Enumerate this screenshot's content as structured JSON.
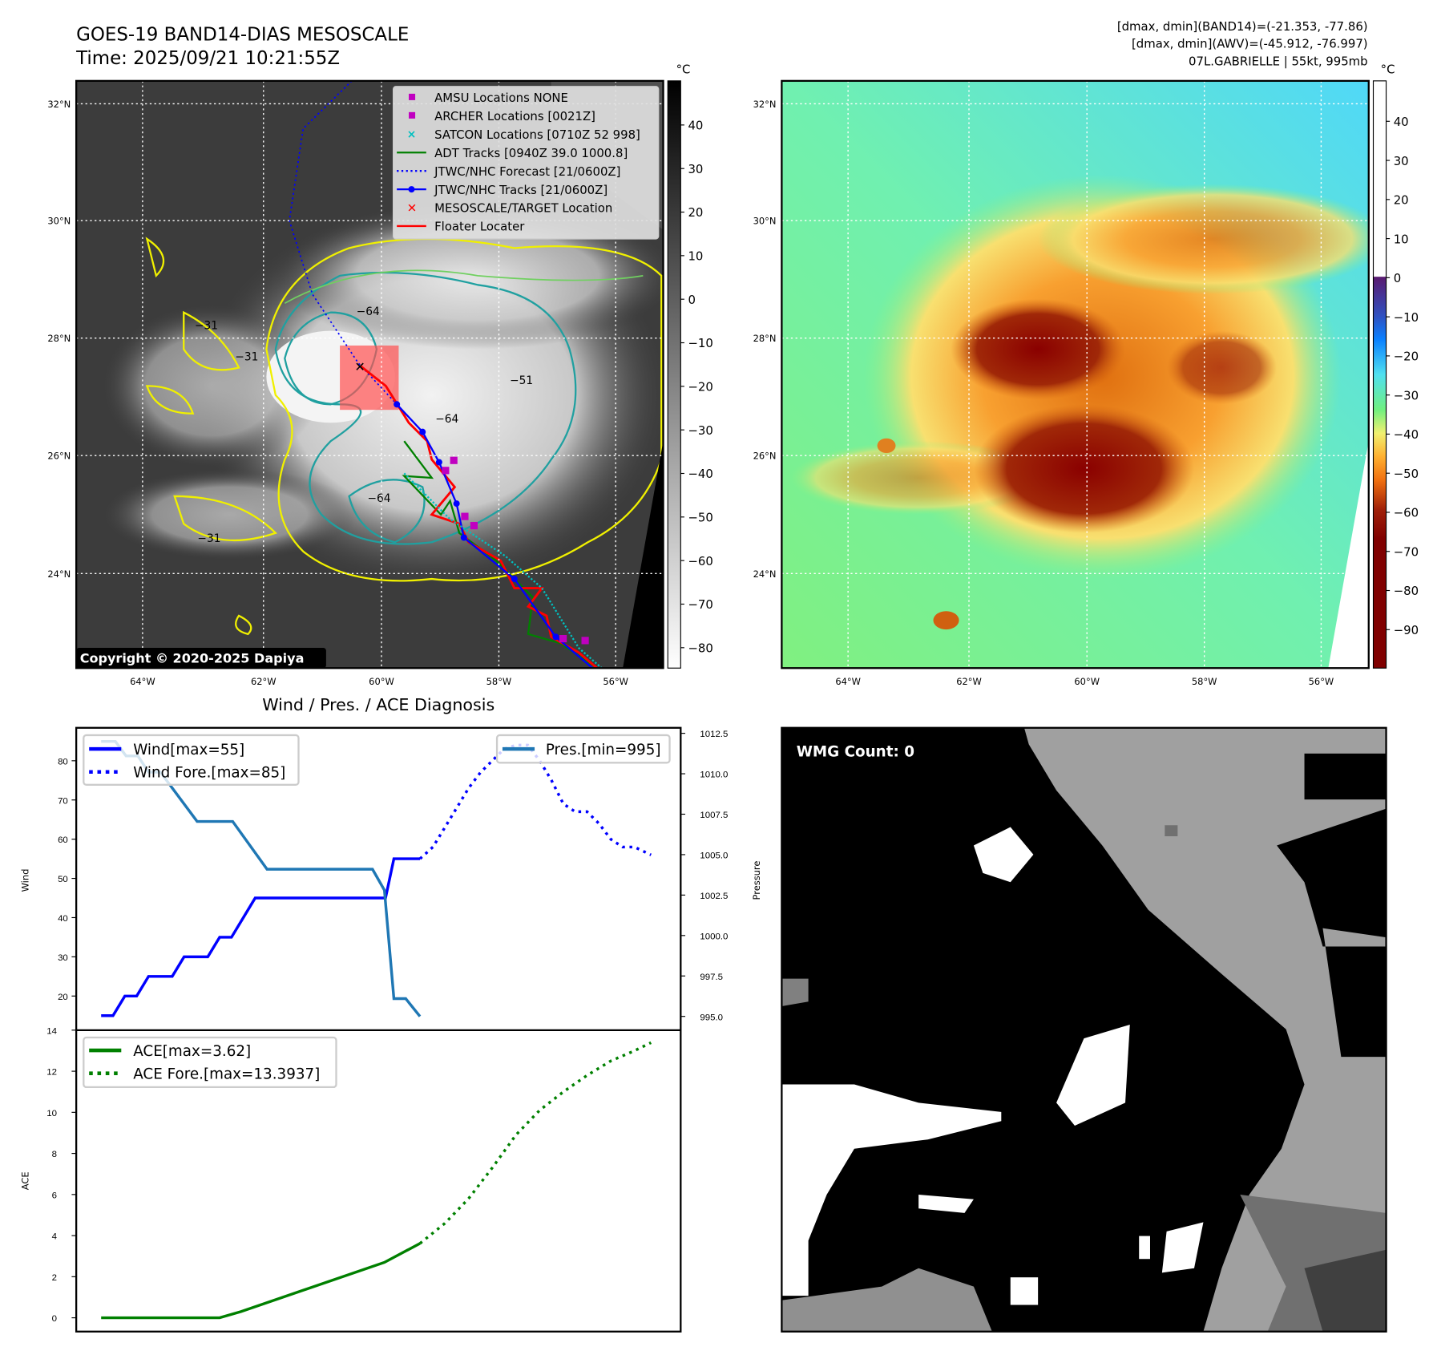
{
  "header": {
    "title": "GOES-19 BAND14-DIAS MESOSCALE",
    "time": "Time: 2025/09/21 10:21:55Z",
    "info_lines": [
      "[dmax, dmin](BAND14)=(-21.353, -77.86)",
      "[dmax, dmin](AWV)=(-45.912, -76.997)",
      "07L.GABRIELLE | 55kt, 995mb"
    ]
  },
  "maps": {
    "lat_labels": [
      "32°N",
      "30°N",
      "28°N",
      "26°N",
      "24°N"
    ],
    "lon_labels": [
      "64°W",
      "62°W",
      "60°W",
      "58°W",
      "56°W"
    ],
    "copyright": "Copyright © 2020-2025 Dapiya",
    "contour_labels": [
      "−31",
      "−64",
      "−51",
      "−64",
      "−64",
      "−31",
      "−31"
    ],
    "legend": [
      {
        "label": "AMSU Locations NONE",
        "color": "#c000c0"
      },
      {
        "label": "ARCHER Locations [0021Z]",
        "color": "#c000c0"
      },
      {
        "label": "SATCON Locations [0710Z 52 998]",
        "color": "#00c0c0"
      },
      {
        "label": "ADT Tracks [0940Z 39.0 1000.8]",
        "color": "#008000"
      },
      {
        "label": "JTWC/NHC Forecast [21/0600Z]",
        "color": "#0000ff"
      },
      {
        "label": "JTWC/NHC Tracks [21/0600Z]",
        "color": "#0000ff"
      },
      {
        "label": "MESOSCALE/TARGET Location",
        "color": "#ff0000"
      },
      {
        "label": "Floater Locater",
        "color": "#ff0000"
      }
    ],
    "colorbar_unit": "°C",
    "colorbar_left_ticks": [
      "40",
      "30",
      "20",
      "10",
      "0",
      "−10",
      "−20",
      "−30",
      "−40",
      "−50",
      "−60",
      "−70",
      "−80"
    ],
    "colorbar_right_ticks": [
      "40",
      "30",
      "20",
      "10",
      "0",
      "−10",
      "−20",
      "−30",
      "−40",
      "−50",
      "−60",
      "−70",
      "−80",
      "−90"
    ]
  },
  "wmg": {
    "label": "WMG Count: 0"
  },
  "chart_data": [
    {
      "type": "line",
      "title": "Wind / Pres. / ACE Diagnosis",
      "ylabel": "Wind",
      "y2label": "Pressure",
      "ylim": [
        11.3,
        88.4
      ],
      "y2lim": [
        994.15,
        1012.84
      ],
      "xlim": [
        -2.1,
        48.9
      ],
      "yticks": [
        20,
        30,
        40,
        50,
        60,
        70,
        80
      ],
      "y2ticks": [
        "995.0",
        "997.5",
        "1000.0",
        "1002.5",
        "1005.0",
        "1007.5",
        "1010.0",
        "1012.5"
      ],
      "legend_left": [
        "Wind[max=55]",
        "Wind Fore.[max=85]"
      ],
      "legend_right": [
        "Pres.[min=995]"
      ],
      "series": [
        {
          "name": "Wind[max=55]",
          "color": "#0000ff",
          "style": "solid",
          "points": [
            [
              0,
              15
            ],
            [
              1,
              15
            ],
            [
              2,
              20
            ],
            [
              3,
              20
            ],
            [
              4,
              25
            ],
            [
              6,
              25
            ],
            [
              7,
              30
            ],
            [
              9,
              30
            ],
            [
              10,
              35
            ],
            [
              11,
              35
            ],
            [
              13,
              45
            ],
            [
              24,
              45
            ],
            [
              24.7,
              55
            ],
            [
              26.9,
              55
            ]
          ]
        },
        {
          "name": "Wind Fore.[max=85]",
          "color": "#0000ff",
          "style": "dotted",
          "points": [
            [
              26.9,
              55
            ],
            [
              28,
              58
            ],
            [
              29,
              63
            ],
            [
              30,
              68
            ],
            [
              31,
              73
            ],
            [
              32,
              77
            ],
            [
              33,
              80
            ],
            [
              34,
              83
            ],
            [
              35,
              84
            ],
            [
              36,
              84
            ],
            [
              37,
              80
            ],
            [
              38,
              75
            ],
            [
              39,
              69
            ],
            [
              40,
              67
            ],
            [
              41,
              67
            ],
            [
              42,
              64
            ],
            [
              43,
              60
            ],
            [
              44,
              58
            ],
            [
              45,
              58
            ],
            [
              46.4,
              56
            ]
          ]
        },
        {
          "name": "Pres.[min=995]",
          "color": "#1f77b4",
          "style": "solid",
          "axis": "right",
          "points": [
            [
              0,
              1012.0
            ],
            [
              1.2,
              1012.0
            ],
            [
              2.1,
              1011.1
            ],
            [
              3.1,
              1011.1
            ],
            [
              4,
              1010.1
            ],
            [
              5,
              1010.1
            ],
            [
              8.1,
              1007.05
            ],
            [
              11.1,
              1007.05
            ],
            [
              14,
              1004.1
            ],
            [
              22.9,
              1004.1
            ],
            [
              23.9,
              1002.8
            ],
            [
              24.7,
              996.1
            ],
            [
              25.7,
              996.1
            ],
            [
              26.9,
              995.0
            ]
          ]
        }
      ]
    },
    {
      "type": "line",
      "ylabel": "ACE",
      "ylim": [
        -0.67,
        14
      ],
      "xlim": [
        -2.1,
        48.9
      ],
      "yticks": [
        0,
        2,
        4,
        6,
        8,
        10,
        12,
        14
      ],
      "legend": [
        "ACE[max=3.62]",
        "ACE Fore.[max=13.3937]"
      ],
      "series": [
        {
          "name": "ACE[max=3.62]",
          "color": "#008000",
          "style": "solid",
          "points": [
            [
              0,
              0
            ],
            [
              10,
              0
            ],
            [
              11.8,
              0.3
            ],
            [
              23.9,
              2.7
            ],
            [
              26.9,
              3.62
            ]
          ]
        },
        {
          "name": "ACE Fore.[max=13.3937]",
          "color": "#008000",
          "style": "dotted",
          "points": [
            [
              26.9,
              3.62
            ],
            [
              29,
              4.6
            ],
            [
              31,
              5.8
            ],
            [
              33,
              7.3
            ],
            [
              35,
              8.9
            ],
            [
              37,
              10.1
            ],
            [
              39,
              11.0
            ],
            [
              41,
              11.8
            ],
            [
              43,
              12.5
            ],
            [
              45,
              13.0
            ],
            [
              46.4,
              13.39
            ]
          ]
        }
      ]
    }
  ]
}
